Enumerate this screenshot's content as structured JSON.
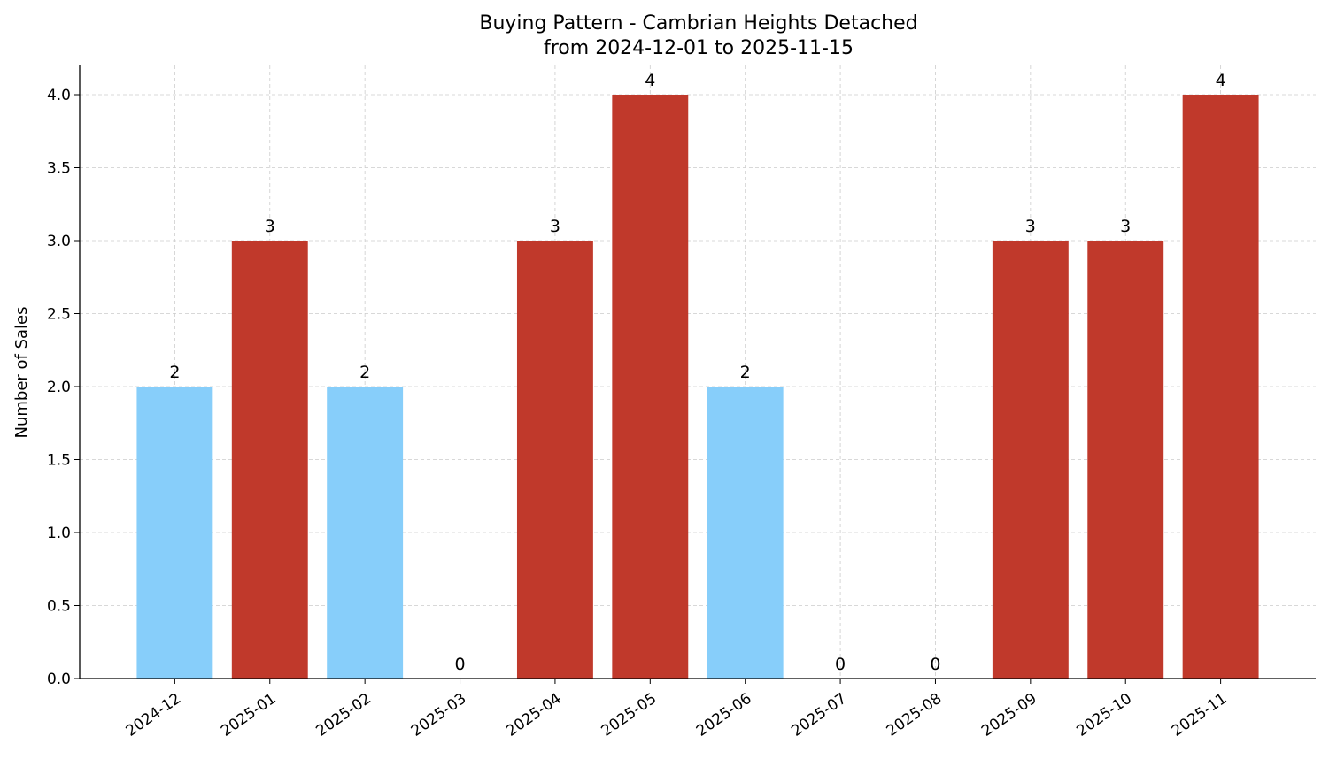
{
  "chart_data": {
    "type": "bar",
    "title": "Buying Pattern - Cambrian Heights Detached",
    "subtitle": "from 2024-12-01 to 2025-11-15",
    "xlabel": "",
    "ylabel": "Number of Sales",
    "categories": [
      "2024-12",
      "2025-01",
      "2025-02",
      "2025-03",
      "2025-04",
      "2025-05",
      "2025-06",
      "2025-07",
      "2025-08",
      "2025-09",
      "2025-10",
      "2025-11"
    ],
    "values": [
      2,
      3,
      2,
      0,
      3,
      4,
      2,
      0,
      0,
      3,
      3,
      4
    ],
    "bar_colors": [
      "#87CEFA",
      "#C0392B",
      "#87CEFA",
      "#87CEFA",
      "#C0392B",
      "#C0392B",
      "#87CEFA",
      "#87CEFA",
      "#87CEFA",
      "#C0392B",
      "#C0392B",
      "#C0392B"
    ],
    "data_labels": [
      "2",
      "3",
      "2",
      "0",
      "3",
      "4",
      "2",
      "0",
      "0",
      "3",
      "3",
      "4"
    ],
    "ylim": [
      0,
      4.2
    ],
    "yticks": [
      "0.0",
      "0.5",
      "1.0",
      "1.5",
      "2.0",
      "2.5",
      "3.0",
      "3.5",
      "4.0"
    ],
    "grid": true,
    "legend": "none"
  }
}
